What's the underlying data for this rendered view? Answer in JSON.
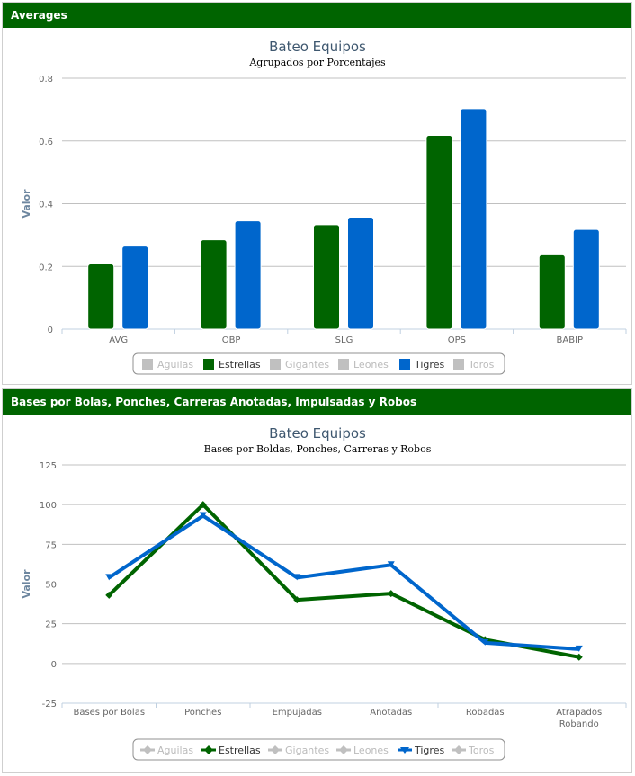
{
  "panels": [
    {
      "header": "Averages"
    },
    {
      "header": "Bases por Bolas, Ponches, Carreras Anotadas, Impulsadas y Robos"
    }
  ],
  "colors": {
    "header_bg": "#006400",
    "estrellas": "#006400",
    "tigres": "#0066cc",
    "inactive": "#c0c0c0"
  },
  "legend": [
    {
      "name": "Aguilas",
      "active": false
    },
    {
      "name": "Estrellas",
      "active": true,
      "color": "#006400"
    },
    {
      "name": "Gigantes",
      "active": false
    },
    {
      "name": "Leones",
      "active": false
    },
    {
      "name": "Tigres",
      "active": true,
      "color": "#0066cc"
    },
    {
      "name": "Toros",
      "active": false
    }
  ],
  "chart_data": [
    {
      "type": "bar",
      "title": "Bateo Equipos",
      "subtitle": "Agrupados por Porcentajes",
      "ylabel": "Valor",
      "ylim": [
        0,
        0.8
      ],
      "yticks": [
        "0",
        "0.2",
        "0.4",
        "0.6",
        "0.8"
      ],
      "categories": [
        "AVG",
        "OBP",
        "SLG",
        "OPS",
        "BABIP"
      ],
      "series": [
        {
          "name": "Estrellas",
          "values": [
            0.208,
            0.285,
            0.333,
            0.618,
            0.237
          ]
        },
        {
          "name": "Tigres",
          "values": [
            0.265,
            0.345,
            0.357,
            0.703,
            0.318
          ]
        }
      ],
      "grid": true,
      "legend_position": "bottom"
    },
    {
      "type": "line",
      "title": "Bateo Equipos",
      "subtitle": "Bases por Boldas, Ponches, Carreras y Robos",
      "ylabel": "Valor",
      "ylim": [
        -25,
        125
      ],
      "yticks": [
        "-25",
        "0",
        "25",
        "50",
        "75",
        "100",
        "125"
      ],
      "categories": [
        "Bases por Bolas",
        "Ponches",
        "Empujadas",
        "Anotadas",
        "Robadas",
        "Atrapados Robando"
      ],
      "series": [
        {
          "name": "Estrellas",
          "values": [
            43,
            100,
            40,
            44,
            15,
            4
          ]
        },
        {
          "name": "Tigres",
          "values": [
            54,
            93,
            54,
            62,
            13,
            9
          ]
        }
      ],
      "grid": true,
      "legend_position": "bottom"
    }
  ]
}
